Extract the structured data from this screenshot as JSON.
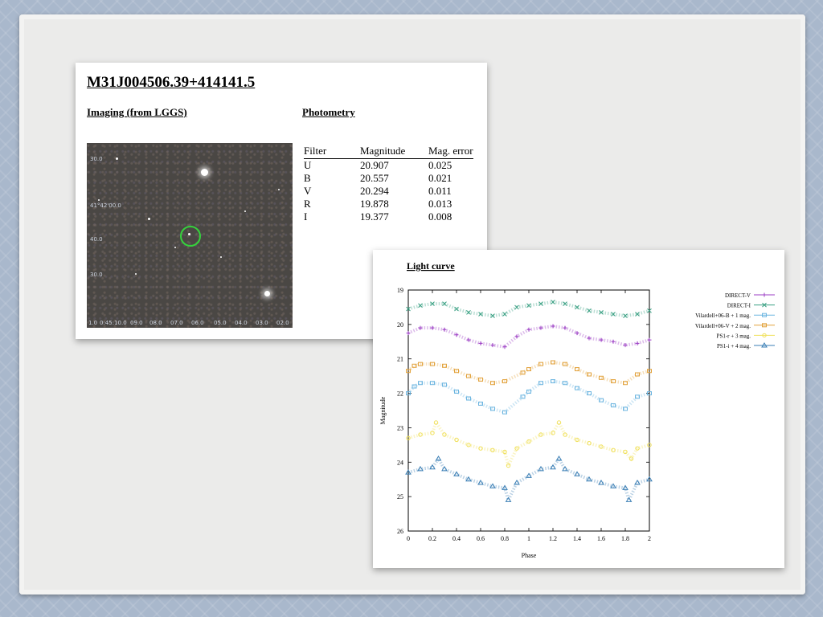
{
  "object_title": "M31J004506.39+414141.5",
  "imaging": {
    "title": "Imaging (from LGGS)",
    "axis_left": [
      "30.0",
      "41°42'00.0",
      "40.0",
      "30.0"
    ],
    "axis_bottom": [
      "1.0",
      "0:45:10.0",
      "09.0",
      "08.0",
      "07.0",
      "06.0",
      "05.0",
      "04.0",
      "03.0",
      "02.0"
    ]
  },
  "photometry": {
    "title": "Photometry",
    "headers": [
      "Filter",
      "Magnitude",
      "Mag. error"
    ],
    "rows": [
      [
        "U",
        "20.907",
        "0.025"
      ],
      [
        "B",
        "20.557",
        "0.021"
      ],
      [
        "V",
        "20.294",
        "0.011"
      ],
      [
        "R",
        "19.878",
        "0.013"
      ],
      [
        "I",
        "19.377",
        "0.008"
      ]
    ]
  },
  "chart_data": {
    "type": "scatter",
    "title": "Light curve",
    "xlabel": "Phase",
    "ylabel": "Magnitude",
    "xlim": [
      0,
      2
    ],
    "ylim": [
      26,
      19
    ],
    "xticks": [
      "0",
      "0.2",
      "0.4",
      "0.6",
      "0.8",
      "1",
      "1.2",
      "1.4",
      "1.6",
      "1.8",
      "2"
    ],
    "yticks": [
      "19",
      "20",
      "21",
      "22",
      "23",
      "24",
      "25",
      "26"
    ],
    "legend_position": "top-right",
    "series": [
      {
        "name": "DIRECT-V",
        "color": "#9b3dc4",
        "marker": "plus",
        "x": [
          0.0,
          0.1,
          0.2,
          0.3,
          0.4,
          0.5,
          0.6,
          0.7,
          0.8,
          0.9,
          1.0,
          1.1,
          1.2,
          1.3,
          1.4,
          1.5,
          1.6,
          1.7,
          1.8,
          1.9,
          2.0
        ],
        "y": [
          20.25,
          20.1,
          20.1,
          20.15,
          20.3,
          20.45,
          20.55,
          20.6,
          20.65,
          20.35,
          20.15,
          20.1,
          20.05,
          20.1,
          20.25,
          20.4,
          20.45,
          20.5,
          20.6,
          20.55,
          20.45
        ]
      },
      {
        "name": "DIRECT-I",
        "color": "#3aa083",
        "marker": "cross",
        "x": [
          0.0,
          0.1,
          0.2,
          0.3,
          0.4,
          0.5,
          0.6,
          0.7,
          0.8,
          0.9,
          1.0,
          1.1,
          1.2,
          1.3,
          1.4,
          1.5,
          1.6,
          1.7,
          1.8,
          1.9,
          2.0
        ],
        "y": [
          19.55,
          19.45,
          19.4,
          19.4,
          19.55,
          19.65,
          19.7,
          19.75,
          19.7,
          19.5,
          19.45,
          19.4,
          19.35,
          19.4,
          19.5,
          19.6,
          19.65,
          19.7,
          19.75,
          19.7,
          19.6
        ]
      },
      {
        "name": "Vilardell+06-B + 1 mag.",
        "color": "#6cb5e0",
        "marker": "square",
        "x": [
          0.0,
          0.05,
          0.1,
          0.2,
          0.3,
          0.4,
          0.5,
          0.6,
          0.7,
          0.8,
          0.95,
          1.0,
          1.1,
          1.2,
          1.3,
          1.4,
          1.5,
          1.6,
          1.7,
          1.8,
          1.9,
          2.0
        ],
        "y": [
          22.0,
          21.8,
          21.7,
          21.7,
          21.75,
          21.95,
          22.15,
          22.3,
          22.45,
          22.55,
          22.1,
          21.95,
          21.7,
          21.65,
          21.7,
          21.85,
          22.0,
          22.2,
          22.35,
          22.45,
          22.1,
          22.0
        ]
      },
      {
        "name": "Vilardell+06-V + 2 mag.",
        "color": "#e2a23c",
        "marker": "square",
        "x": [
          0.0,
          0.05,
          0.1,
          0.2,
          0.3,
          0.4,
          0.5,
          0.6,
          0.7,
          0.8,
          0.95,
          1.0,
          1.1,
          1.2,
          1.3,
          1.4,
          1.5,
          1.6,
          1.7,
          1.8,
          1.9,
          2.0
        ],
        "y": [
          21.35,
          21.2,
          21.15,
          21.15,
          21.2,
          21.35,
          21.5,
          21.6,
          21.7,
          21.65,
          21.4,
          21.3,
          21.15,
          21.1,
          21.15,
          21.3,
          21.45,
          21.55,
          21.65,
          21.7,
          21.45,
          21.35
        ]
      },
      {
        "name": "PS1-r + 3 mag.",
        "color": "#f0e05a",
        "marker": "circle",
        "x": [
          0.0,
          0.1,
          0.2,
          0.23,
          0.3,
          0.4,
          0.5,
          0.6,
          0.7,
          0.8,
          0.83,
          0.9,
          1.0,
          1.1,
          1.2,
          1.25,
          1.3,
          1.4,
          1.5,
          1.6,
          1.7,
          1.8,
          1.85,
          1.9,
          2.0
        ],
        "y": [
          23.3,
          23.2,
          23.15,
          22.85,
          23.2,
          23.35,
          23.5,
          23.6,
          23.65,
          23.7,
          24.1,
          23.6,
          23.4,
          23.2,
          23.15,
          22.85,
          23.2,
          23.35,
          23.45,
          23.55,
          23.65,
          23.7,
          23.9,
          23.6,
          23.5
        ]
      },
      {
        "name": "PS1-i + 4 mag.",
        "color": "#3b7fb5",
        "marker": "triangle",
        "x": [
          0.0,
          0.1,
          0.2,
          0.25,
          0.3,
          0.4,
          0.5,
          0.6,
          0.7,
          0.8,
          0.83,
          0.9,
          1.0,
          1.1,
          1.2,
          1.25,
          1.3,
          1.4,
          1.5,
          1.6,
          1.7,
          1.8,
          1.83,
          1.9,
          2.0
        ],
        "y": [
          24.3,
          24.2,
          24.15,
          23.9,
          24.2,
          24.35,
          24.5,
          24.6,
          24.7,
          24.75,
          25.1,
          24.6,
          24.4,
          24.2,
          24.15,
          23.9,
          24.2,
          24.35,
          24.5,
          24.6,
          24.7,
          24.75,
          25.1,
          24.6,
          24.5
        ]
      }
    ]
  }
}
